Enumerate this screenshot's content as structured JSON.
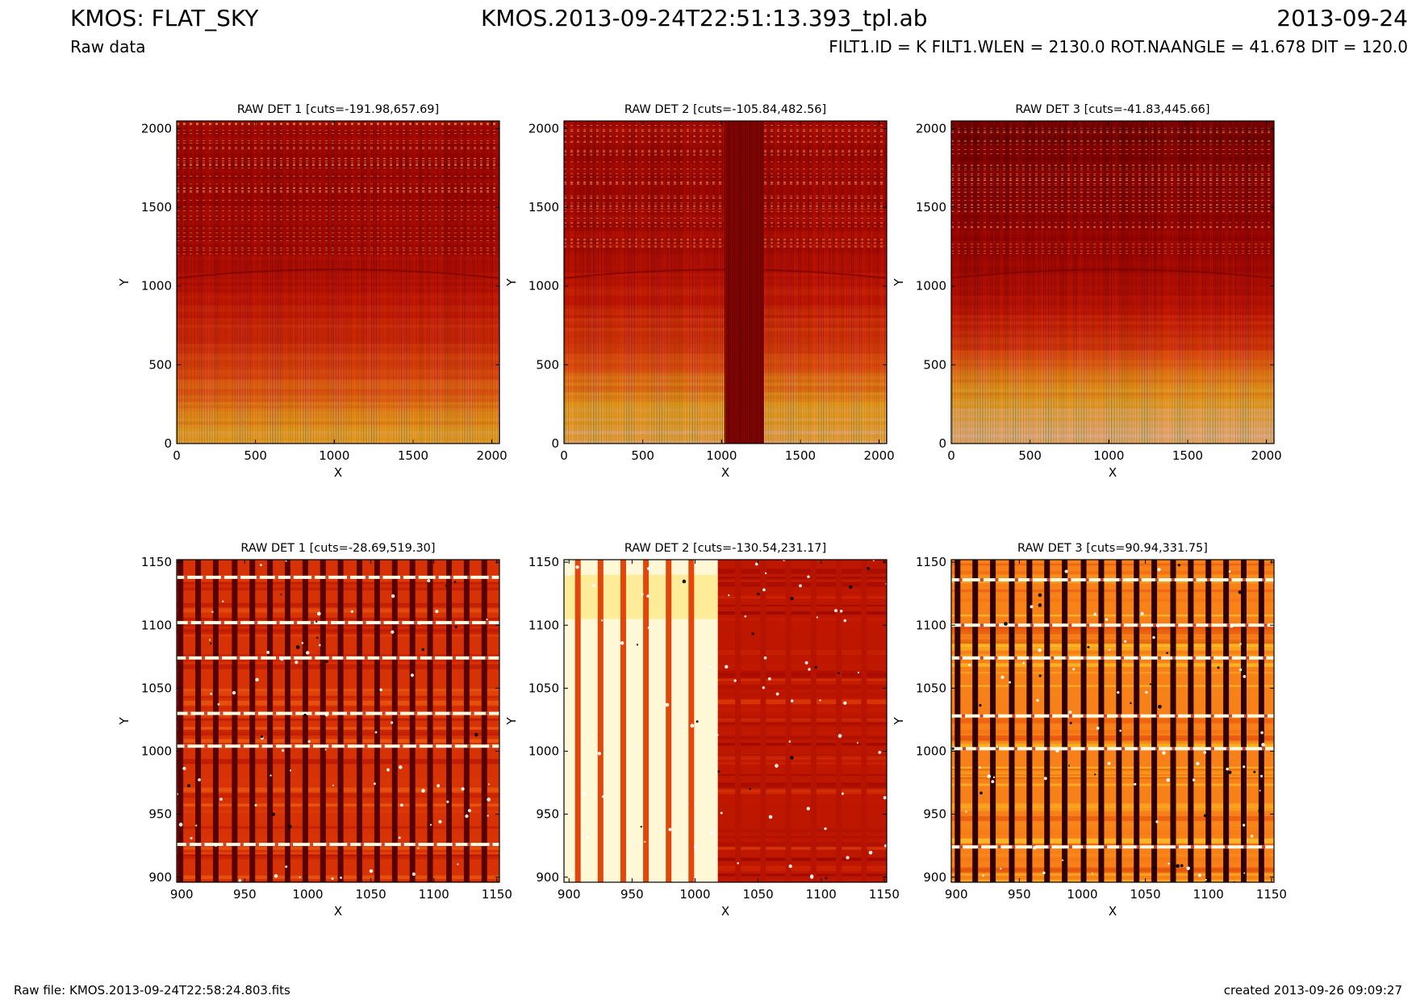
{
  "header": {
    "title_left": "KMOS: FLAT_SKY",
    "subtitle_left": "Raw data",
    "title_center": "KMOS.2013-09-24T22:51:13.393_tpl.ab",
    "title_right": "2013-09-24",
    "subtitle_right": "FILT1.ID = K FILT1.WLEN = 2130.0 ROT.NAANGLE = 41.678 DIT = 120.0"
  },
  "footer": {
    "raw_file": "Raw file: KMOS.2013-09-24T22:58:24.803.fits",
    "created": "created 2013-09-26 09:09:27"
  },
  "colors": {
    "dark": "#5a0000",
    "red": "#c81400",
    "orange": "#f06414",
    "yellow": "#ffdc28",
    "white": "#ffffff"
  },
  "chart_data": [
    {
      "type": "heatmap",
      "panel": "full-det1",
      "title": "RAW DET 1 [cuts=-191.98,657.69]",
      "xlabel": "X",
      "ylabel": "Y",
      "xlim": [
        0,
        2048
      ],
      "ylim": [
        0,
        2048
      ],
      "xticks": [
        0,
        500,
        1000,
        1500,
        2000
      ],
      "yticks": [
        0,
        500,
        1000,
        1500,
        2000
      ],
      "colormap": "hot",
      "cuts": [
        -191.98,
        657.69
      ],
      "vertical_profile_y": [
        0,
        300,
        600,
        900,
        1200,
        1500,
        1800,
        2048
      ],
      "vertical_profile_level": [
        0.85,
        0.7,
        0.55,
        0.45,
        0.35,
        0.3,
        0.28,
        0.32
      ],
      "dark_stripes_x": [],
      "bright_stripes_x": []
    },
    {
      "type": "heatmap",
      "panel": "full-det2",
      "title": "RAW DET 2 [cuts=-105.84,482.56]",
      "xlabel": "X",
      "ylabel": "Y",
      "xlim": [
        0,
        2048
      ],
      "ylim": [
        0,
        2048
      ],
      "xticks": [
        0,
        500,
        1000,
        1500,
        2000
      ],
      "yticks": [
        0,
        500,
        1000,
        1500,
        2000
      ],
      "colormap": "hot",
      "cuts": [
        -105.84,
        482.56
      ],
      "vertical_profile_y": [
        0,
        300,
        600,
        900,
        1200,
        1500,
        1800,
        2048
      ],
      "vertical_profile_level": [
        0.9,
        0.78,
        0.6,
        0.48,
        0.38,
        0.32,
        0.3,
        0.33
      ],
      "dark_stripes_x": [
        [
          1020,
          1270
        ]
      ],
      "bright_stripes_x": []
    },
    {
      "type": "heatmap",
      "panel": "full-det3",
      "title": "RAW DET 3 [cuts=-41.83,445.66]",
      "xlabel": "X",
      "ylabel": "Y",
      "xlim": [
        0,
        2048
      ],
      "ylim": [
        0,
        2048
      ],
      "xticks": [
        0,
        500,
        1000,
        1500,
        2000
      ],
      "yticks": [
        0,
        500,
        1000,
        1500,
        2000
      ],
      "colormap": "hot",
      "cuts": [
        -41.83,
        445.66
      ],
      "vertical_profile_y": [
        0,
        300,
        600,
        900,
        1200,
        1500,
        1800,
        2048
      ],
      "vertical_profile_level": [
        0.95,
        0.82,
        0.6,
        0.42,
        0.3,
        0.24,
        0.2,
        0.15
      ],
      "dark_stripes_x": [],
      "bright_stripes_x": []
    },
    {
      "type": "heatmap",
      "panel": "zoom-det1",
      "title": "RAW DET 1 [cuts=-28.69,519.30]",
      "xlabel": "X",
      "ylabel": "Y",
      "xlim": [
        896,
        1152
      ],
      "ylim": [
        896,
        1152
      ],
      "xticks": [
        900,
        950,
        1000,
        1050,
        1100,
        1150
      ],
      "yticks": [
        900,
        950,
        1000,
        1050,
        1100,
        1150
      ],
      "colormap": "hot",
      "cuts": [
        -28.69,
        519.3
      ],
      "base_level": 0.5,
      "columns_x": [
        899,
        913,
        927,
        942,
        956,
        970,
        984,
        998,
        1012,
        1026,
        1041,
        1055,
        1069,
        1083,
        1097,
        1112,
        1126,
        1140
      ],
      "column_level": 0.12,
      "bright_rows_y": [
        926,
        1004,
        1030,
        1074,
        1102,
        1138
      ],
      "white_region_x": []
    },
    {
      "type": "heatmap",
      "panel": "zoom-det2",
      "title": "RAW DET 2 [cuts=-130.54,231.17]",
      "xlabel": "X",
      "ylabel": "Y",
      "xlim": [
        896,
        1152
      ],
      "ylim": [
        896,
        1152
      ],
      "xticks": [
        900,
        950,
        1000,
        1050,
        1100,
        1150
      ],
      "yticks": [
        900,
        950,
        1000,
        1050,
        1100,
        1150
      ],
      "colormap": "hot",
      "cuts": [
        -130.54,
        231.17
      ],
      "base_level": 0.4,
      "columns_x": [
        907,
        925,
        943,
        961,
        979,
        997,
        1034,
        1054,
        1074,
        1094,
        1114,
        1134
      ],
      "column_level": 0.38,
      "bright_rows_y": [],
      "white_region_x": [
        896,
        1018
      ]
    },
    {
      "type": "heatmap",
      "panel": "zoom-det3",
      "title": "RAW DET 3 [cuts=90.94,331.75]",
      "xlabel": "X",
      "ylabel": "Y",
      "xlim": [
        896,
        1152
      ],
      "ylim": [
        896,
        1152
      ],
      "xticks": [
        900,
        950,
        1000,
        1050,
        1100,
        1150
      ],
      "yticks": [
        900,
        950,
        1000,
        1050,
        1100,
        1150
      ],
      "colormap": "hot",
      "cuts": [
        90.94,
        331.75
      ],
      "base_level": 0.68,
      "columns_x": [
        901,
        915,
        929,
        944,
        958,
        972,
        986,
        1001,
        1015,
        1029,
        1043,
        1057,
        1072,
        1086,
        1100,
        1114,
        1128,
        1142
      ],
      "column_level": 0.02,
      "bright_rows_y": [
        924,
        1002,
        1028,
        1074,
        1100,
        1136
      ],
      "white_region_x": []
    }
  ]
}
